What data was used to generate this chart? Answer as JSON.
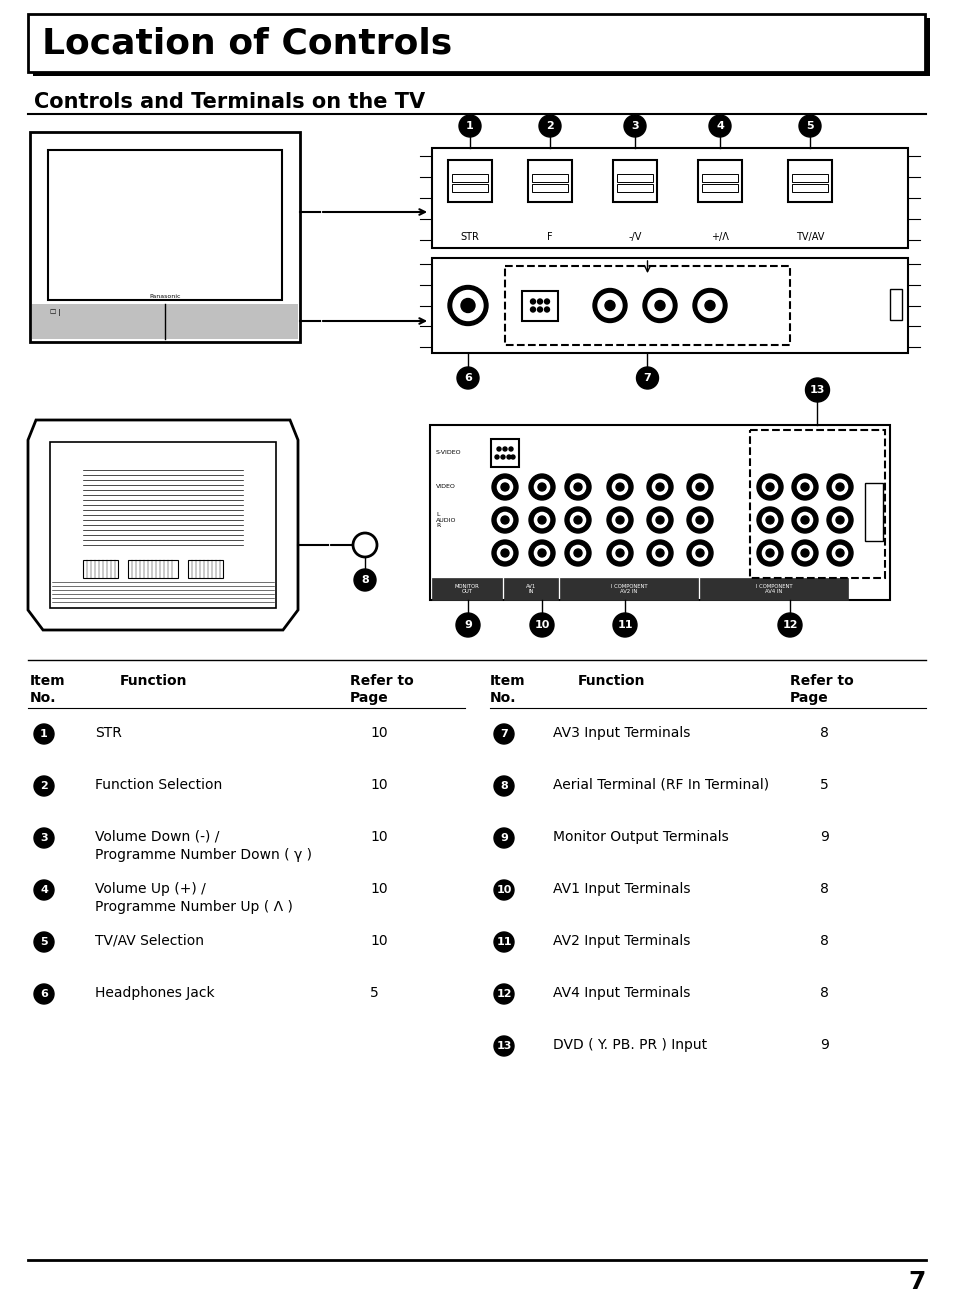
{
  "title": "Location of Controls",
  "subtitle": "Controls and Terminals on the TV",
  "page_number": "7",
  "bg_color": "#ffffff",
  "table_left": {
    "rows": [
      [
        "1",
        "STR",
        "10"
      ],
      [
        "2",
        "Function Selection",
        "10"
      ],
      [
        "3",
        "Volume Down (-) /\nProgramme Number Down ( γ )",
        "10"
      ],
      [
        "4",
        "Volume Up (+) /\nProgramme Number Up ( Λ )",
        "10"
      ],
      [
        "5",
        "TV/AV Selection",
        "10"
      ],
      [
        "6",
        "Headphones Jack",
        "5"
      ]
    ]
  },
  "table_right": {
    "rows": [
      [
        "7",
        "AV3 Input Terminals",
        "8"
      ],
      [
        "8",
        "Aerial Terminal (RF In Terminal)",
        "5"
      ],
      [
        "9",
        "Monitor Output Terminals",
        "9"
      ],
      [
        "10",
        "AV1 Input Terminals",
        "8"
      ],
      [
        "11",
        "AV2 Input Terminals",
        "8"
      ],
      [
        "12",
        "AV4 Input Terminals",
        "8"
      ],
      [
        "13",
        "DVD ( Y. PB. PR ) Input",
        "9"
      ]
    ]
  }
}
